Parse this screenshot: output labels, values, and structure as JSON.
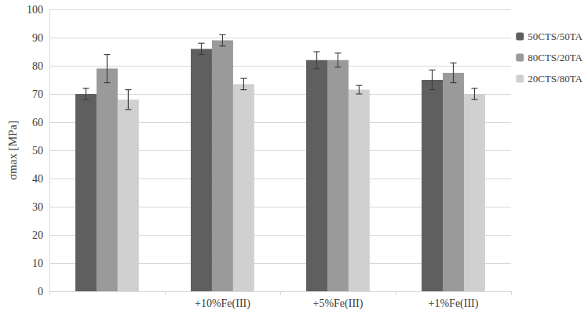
{
  "chart_data": {
    "type": "bar",
    "categories": [
      null,
      "+10%Fe(III)",
      "+5%Fe(III)",
      "+1%Fe(III)"
    ],
    "series": [
      {
        "name": "50CTS/50TA",
        "color": "#5f5f5f",
        "values": [
          70,
          86,
          82,
          75
        ],
        "errors": [
          2,
          2,
          3,
          3.5
        ]
      },
      {
        "name": "80CTS/20TA",
        "color": "#9a9a9a",
        "values": [
          79,
          89,
          82,
          77.5
        ],
        "errors": [
          5,
          2,
          2.5,
          3.5
        ]
      },
      {
        "name": "20CTS/80TA",
        "color": "#d0d0d0",
        "values": [
          68,
          73.5,
          71.5,
          70
        ],
        "errors": [
          3.5,
          2,
          1.5,
          2
        ]
      }
    ],
    "y_label": "σmax [MPa]",
    "ylim": [
      0,
      100
    ],
    "yticks": [
      0,
      10,
      20,
      30,
      40,
      50,
      60,
      70,
      80,
      90,
      100
    ],
    "grid": true,
    "legend": "right"
  }
}
